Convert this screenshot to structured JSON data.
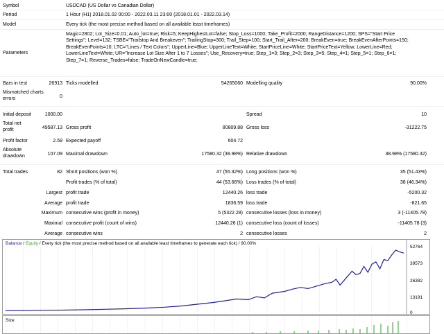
{
  "header": {
    "symbol": {
      "label": "Symbol",
      "value": "USDCAD (US Dollar vs Canadian Dollar)"
    },
    "period": {
      "label": "Period",
      "value": "1 Hour (H1) 2018.01.02 00:00 - 2022.03.11 23:00 (2018.01.01 - 2022.03.14)"
    },
    "model": {
      "label": "Model",
      "value": "Every tick (the most precise method based on all available least timeframes)"
    },
    "parameters": {
      "label": "Parameters",
      "value": "Magic=2802; Lot_Size=0.01; Auto_lot=true; Risk=5; KeepHighestLot=false; Stop_Loss=1000; Take_Profit=2000; RangeDistance=1200; SPS=\"Start Price Settings\"; Level=132; TSBE=\"Trailstop And Breakeven\"; TrailingStop=300; Trail_Step=100; Start_Trail_After=200; BreakEven=true; BreakEvenAfterPoints=150; BreakEvenPoints=10; LTC=\"Lines / Text Colors\"; UpperLine=Blue; UpperLineText=White; StartPriceLine=White; StartPriceText=Yellow; LowerLine=Red; LowerLineText=White; UR=\"Increase Lot Size After 1 to 7 Losses\"; Use_Recovery=true; Step_1=3; Step_2=3; Step_3=5; Step_4=1; Step_5=1; Step_6=1; Step_7=1; Reverse_Trades=false; TradeOnNewCandle=true;"
    }
  },
  "stats": {
    "bars_label": "Bars in test",
    "bars_value": "26913",
    "ticks_label": "Ticks modelled",
    "ticks_value": "54265060",
    "quality_label": "Modelling quality",
    "quality_value": "90.00%",
    "mismatched_label": "Mismatched charts errors",
    "mismatched_value": "0",
    "initial_deposit_label": "Initial deposit",
    "initial_deposit_value": "1000.00",
    "spread_label": "Spread",
    "spread_value": "10",
    "net_profit_label": "Total net profit",
    "net_profit_value": "49587.13",
    "gross_profit_label": "Gross profit",
    "gross_profit_value": "80809.88",
    "gross_loss_label": "Gross loss",
    "gross_loss_value": "-31222.75",
    "profit_factor_label": "Profit factor",
    "profit_factor_value": "2.59",
    "expected_payoff_label": "Expected payoff",
    "expected_payoff_value": "604.72",
    "abs_drawdown_label": "Absolute drawdown",
    "abs_drawdown_value": "107.09",
    "max_drawdown_label": "Maximal drawdown",
    "max_drawdown_value": "17580.32 (38.98%)",
    "rel_drawdown_label": "Relative drawdown",
    "rel_drawdown_value": "38.98% (17580.32)",
    "total_trades_label": "Total trades",
    "total_trades_value": "82",
    "short_label": "Short positions (won %)",
    "short_value": "47 (55.32%)",
    "long_label": "Long positions (won %)",
    "long_value": "35 (51.43%)",
    "profit_trades_label": "Profit trades (% of total)",
    "profit_trades_value": "44 (53.66%)",
    "loss_trades_label": "Loss trades (% of total)",
    "loss_trades_value": "38 (46.34%)",
    "largest_label": "Largest",
    "largest_profit_label": "profit trade",
    "largest_profit_value": "12440.26",
    "largest_loss_label": "loss trade",
    "largest_loss_value": "-5200.32",
    "average_label": "Average",
    "average_profit_label": "profit trade",
    "average_profit_value": "1836.59",
    "average_loss_label": "loss trade",
    "average_loss_value": "-821.65",
    "maximum_label": "Maximum",
    "max_cons_wins_label": "consecutive wins (profit in money)",
    "max_cons_wins_value": "5 (5322.28)",
    "max_cons_losses_label": "consecutive losses (loss in money)",
    "max_cons_losses_value": "3 (-11405.78)",
    "maximal_label": "Maximal",
    "maximal_profit_label": "consecutive profit (count of wins)",
    "maximal_profit_value": "12440.26 (1)",
    "maximal_loss_label": "consecutive loss (count of losses)",
    "maximal_loss_value": "-11405.78 (3)",
    "average2_label": "Average",
    "avg_cons_wins_label": "consecutive wins",
    "avg_cons_wins_value": "2",
    "avg_cons_losses_label": "consecutive losses",
    "avg_cons_losses_value": "2"
  },
  "chart": {
    "balance_label": "Balance",
    "slash1": " / ",
    "equity_label": "Equity",
    "rest": " / Every tick (the most precise method based on all available least timeframes to generate each tick) / 90.00%",
    "size_label": "Size",
    "colors": {
      "balance": "#1f1faa",
      "equity": "#2ea02e",
      "size": "#22aa22"
    }
  },
  "chart_data": {
    "type": "line",
    "title": "",
    "y_ticks": [
      "52764",
      "39573",
      "26382",
      "13191",
      "0"
    ],
    "ylim": [
      0,
      56000
    ],
    "series": [
      {
        "name": "Balance",
        "x": [
          0,
          5,
          10,
          15,
          20,
          25,
          30,
          35,
          40,
          44,
          48,
          52,
          55,
          58,
          61,
          63,
          65,
          67,
          70,
          72,
          74,
          76,
          78,
          80,
          82,
          83,
          84,
          85,
          87,
          88,
          89,
          90,
          91,
          92,
          93,
          94,
          95,
          96,
          97,
          98,
          99,
          100
        ],
        "values": [
          1000,
          1100,
          1300,
          1500,
          1800,
          2200,
          2600,
          3200,
          4000,
          5000,
          6500,
          8000,
          9500,
          11000,
          10500,
          13000,
          12000,
          16000,
          17500,
          19500,
          21000,
          20000,
          22000,
          24000,
          25500,
          28000,
          23000,
          27000,
          35000,
          32000,
          33000,
          39000,
          34000,
          41000,
          43000,
          37000,
          45000,
          44000,
          49000,
          53000,
          51500,
          50500
        ]
      }
    ]
  }
}
